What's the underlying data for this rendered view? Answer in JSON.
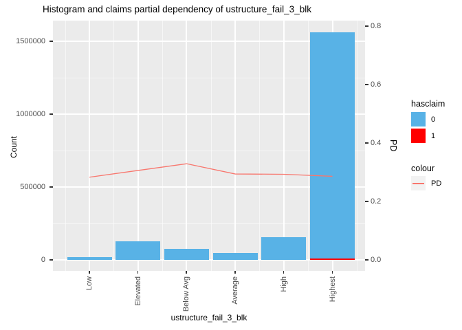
{
  "title": "Histogram and claims partial dependency of ustructure_fail_3_blk",
  "x_axis": {
    "title": "ustructure_fail_3_blk",
    "categories": [
      "Low",
      "Elevated",
      "Below Avg",
      "Average",
      "High",
      "Highest"
    ]
  },
  "y_axis_left": {
    "title": "Count",
    "ticks": [
      0,
      500000,
      1000000,
      1500000
    ],
    "tick_labels": [
      "0",
      "500000",
      "1000000",
      "1500000"
    ]
  },
  "y_axis_right": {
    "title": "PD",
    "ticks": [
      0,
      0.2,
      0.4,
      0.6,
      0.8
    ],
    "tick_labels": [
      "0.0",
      "0.2",
      "0.4",
      "0.6",
      "0.8"
    ]
  },
  "legend": {
    "fill_title": "hasclaim",
    "fill_items": [
      {
        "label": "0",
        "color": "#58B2E6"
      },
      {
        "label": "1",
        "color": "#FF0000"
      }
    ],
    "colour_title": "colour",
    "colour_items": [
      {
        "label": "PD",
        "color": "#F8766D"
      }
    ]
  },
  "colors": {
    "panel_background": "#EBEBEB",
    "gridline": "#FFFFFF",
    "bar_hasclaim_0": "#58B2E6",
    "bar_hasclaim_1": "#FF0000",
    "pd_line": "#F8766D",
    "axis_text": "#4D4D4D"
  },
  "chart_data": {
    "type": "bar",
    "title": "Histogram and claims partial dependency of ustructure_fail_3_blk",
    "categories": [
      "Low",
      "Elevated",
      "Below Avg",
      "Average",
      "High",
      "Highest"
    ],
    "series": [
      {
        "name": "hasclaim 0",
        "type": "bar",
        "axis": "left",
        "color": "#58B2E6",
        "values": [
          20000,
          127000,
          77000,
          46000,
          156000,
          1550000
        ]
      },
      {
        "name": "hasclaim 1",
        "type": "bar",
        "axis": "left",
        "color": "#FF0000",
        "values": [
          0,
          0,
          0,
          0,
          0,
          10000
        ]
      },
      {
        "name": "PD",
        "type": "line",
        "axis": "right",
        "color": "#F8766D",
        "values": [
          0.283,
          0.306,
          0.329,
          0.294,
          0.293,
          0.286
        ]
      }
    ],
    "stacked": true,
    "xlabel": "ustructure_fail_3_blk",
    "ylabel_left": "Count",
    "ylabel_right": "PD",
    "ylim_left": [
      0,
      1641000
    ],
    "ylim_right": [
      0,
      0.82
    ],
    "left_ticks": [
      0,
      500000,
      1000000,
      1500000
    ],
    "right_ticks": [
      0,
      0.2,
      0.4,
      0.6,
      0.8
    ],
    "grid": true,
    "legend_position": "right"
  }
}
